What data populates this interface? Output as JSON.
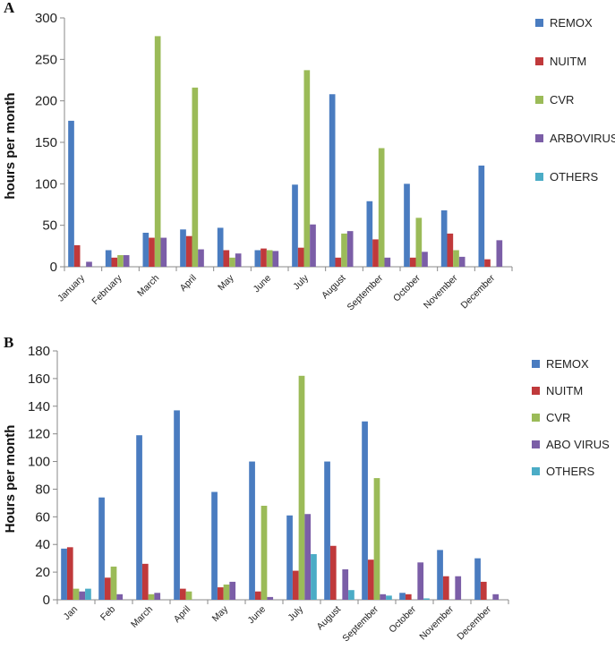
{
  "colors": {
    "REMOX": "#4a7cc0",
    "NUITM": "#c0393b",
    "CVR": "#9bbb58",
    "ARBOVIRUS": "#7b5ea7",
    "OTHERS": "#4bacc6"
  },
  "chart_data": [
    {
      "type": "bar",
      "panel_label": "A",
      "ylabel": "hours per month",
      "ylim": [
        0,
        300
      ],
      "yticks": [
        0,
        50,
        100,
        150,
        200,
        250,
        300
      ],
      "grid": false,
      "legend_position": "right",
      "categories": [
        "January",
        "February",
        "March",
        "April",
        "May",
        "June",
        "July",
        "August",
        "September",
        "October",
        "November",
        "December"
      ],
      "series": [
        {
          "name": "REMOX",
          "values": [
            176,
            20,
            41,
            45,
            47,
            20,
            99,
            208,
            79,
            100,
            68,
            122
          ]
        },
        {
          "name": "NUITM",
          "values": [
            26,
            11,
            35,
            37,
            20,
            22,
            23,
            11,
            33,
            11,
            40,
            9
          ]
        },
        {
          "name": "CVR",
          "values": [
            0,
            14,
            278,
            216,
            11,
            20,
            237,
            40,
            143,
            59,
            20,
            0
          ]
        },
        {
          "name": "ARBOVIRUS",
          "values": [
            6,
            14,
            35,
            21,
            16,
            19,
            51,
            43,
            11,
            18,
            12,
            32
          ]
        },
        {
          "name": "OTHERS",
          "values": [
            0,
            0,
            0,
            0,
            0,
            0,
            0,
            0,
            0,
            0,
            0,
            0
          ]
        }
      ]
    },
    {
      "type": "bar",
      "panel_label": "B",
      "ylabel": "Hours per month",
      "ylim": [
        0,
        180
      ],
      "yticks": [
        0,
        20,
        40,
        60,
        80,
        100,
        120,
        140,
        160,
        180
      ],
      "grid": false,
      "legend_position": "right",
      "categories": [
        "Jan",
        "Feb",
        "March",
        "April",
        "May",
        "June",
        "July",
        "August",
        "September",
        "October",
        "November",
        "December"
      ],
      "series": [
        {
          "name": "REMOX",
          "values": [
            37,
            74,
            119,
            137,
            78,
            100,
            61,
            100,
            129,
            5,
            36,
            30
          ]
        },
        {
          "name": "NUITM",
          "values": [
            38,
            16,
            26,
            8,
            9,
            6,
            21,
            39,
            29,
            4,
            17,
            13
          ]
        },
        {
          "name": "CVR",
          "values": [
            8,
            24,
            4,
            6,
            11,
            68,
            162,
            0,
            88,
            0,
            0,
            0
          ]
        },
        {
          "name": "ABO VIRUS",
          "values": [
            6,
            4,
            5,
            0,
            13,
            2,
            62,
            22,
            4,
            27,
            17,
            4
          ]
        },
        {
          "name": "OTHERS",
          "values": [
            8,
            0,
            0,
            0,
            0,
            0,
            33,
            7,
            3,
            1,
            0,
            0
          ]
        }
      ]
    }
  ]
}
